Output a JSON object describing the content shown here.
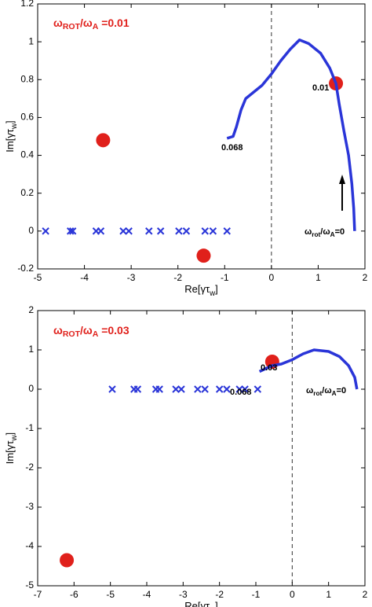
{
  "chart_data": [
    {
      "type": "scatter",
      "title": [
        "ω",
        "ROT",
        "/ω",
        "A",
        " =0.01"
      ],
      "xlabel": [
        "Re[γτ",
        "w",
        "]"
      ],
      "ylabel": [
        "Im[γτ",
        "w",
        "]"
      ],
      "xlim": [
        -5,
        2
      ],
      "xticks": [
        -5,
        -4,
        -3,
        -2,
        -1,
        0,
        1,
        2
      ],
      "ylim": [
        -0.2,
        1.2
      ],
      "yticks": [
        -0.2,
        0,
        0.2,
        0.4,
        0.6,
        0.8,
        1,
        1.2
      ],
      "series": [
        {
          "marker": "x",
          "color": "#2a35d8",
          "x": [
            -4.83,
            -4.3,
            -4.25,
            -3.75,
            -3.65,
            -3.17,
            -3.05,
            -2.62,
            -2.37,
            -1.98,
            -1.82,
            -1.42,
            -1.25,
            -0.95
          ],
          "y": [
            0,
            0,
            0,
            0,
            0,
            0,
            0,
            0,
            0,
            0,
            0,
            0,
            0,
            0
          ]
        },
        {
          "marker": "o",
          "color": "#e0201b",
          "x": [
            -3.6,
            -1.45,
            1.38
          ],
          "y": [
            0.48,
            -0.13,
            0.78
          ]
        },
        {
          "marker": "line",
          "color": "#2a35d8",
          "x": [
            1.78,
            1.76,
            1.72,
            1.65,
            1.55,
            1.45,
            1.38,
            1.25,
            1.05,
            0.8,
            0.6,
            0.4,
            0.2,
            0,
            -0.2,
            -0.4,
            -0.55,
            -0.65,
            -0.75,
            -0.82,
            -0.95
          ],
          "y": [
            0,
            0.12,
            0.25,
            0.4,
            0.53,
            0.67,
            0.78,
            0.86,
            0.94,
            0.99,
            1.01,
            0.96,
            0.9,
            0.83,
            0.77,
            0.73,
            0.7,
            0.64,
            0.55,
            0.5,
            0.49
          ]
        }
      ],
      "annotations": [
        [
          "0.01"
        ],
        [
          "0.068"
        ],
        [
          "ω",
          "rot",
          "/ω",
          "A",
          "=0"
        ]
      ]
    },
    {
      "type": "scatter",
      "title": [
        "ω",
        "ROT",
        "/ω",
        "A",
        " =0.03"
      ],
      "xlabel": [
        "Re[γτ",
        "w",
        "]"
      ],
      "ylabel": [
        "Im[γτ",
        "w",
        "]"
      ],
      "xlim": [
        -7,
        2
      ],
      "xticks": [
        -7,
        -6,
        -5,
        -4,
        -3,
        -2,
        -1,
        0,
        1,
        2
      ],
      "ylim": [
        -5,
        2
      ],
      "yticks": [
        -5,
        -4,
        -3,
        -2,
        -1,
        0,
        1,
        2
      ],
      "series": [
        {
          "marker": "x",
          "color": "#2a35d8",
          "x": [
            -4.95,
            -4.35,
            -4.25,
            -3.75,
            -3.65,
            -3.2,
            -3.05,
            -2.6,
            -2.4,
            -2.0,
            -1.8,
            -1.45,
            -1.3,
            -0.95
          ],
          "y": [
            0,
            0,
            0,
            0,
            0,
            0,
            0,
            0,
            0,
            0,
            0,
            0,
            0,
            0
          ]
        },
        {
          "marker": "o",
          "color": "#e0201b",
          "x": [
            -6.2,
            -0.55
          ],
          "y": [
            -4.35,
            0.7
          ]
        },
        {
          "marker": "line",
          "color": "#2a35d8",
          "x": [
            1.78,
            1.72,
            1.55,
            1.3,
            1.0,
            0.6,
            0.3,
            0,
            -0.3,
            -0.55,
            -0.9
          ],
          "y": [
            0,
            0.3,
            0.6,
            0.83,
            0.96,
            1.0,
            0.9,
            0.75,
            0.64,
            0.6,
            0.45
          ]
        }
      ],
      "annotations": [
        [
          "0.03"
        ],
        [
          "0.068"
        ],
        [
          "ω",
          "rot",
          "/ω",
          "A",
          "=0"
        ]
      ]
    }
  ]
}
